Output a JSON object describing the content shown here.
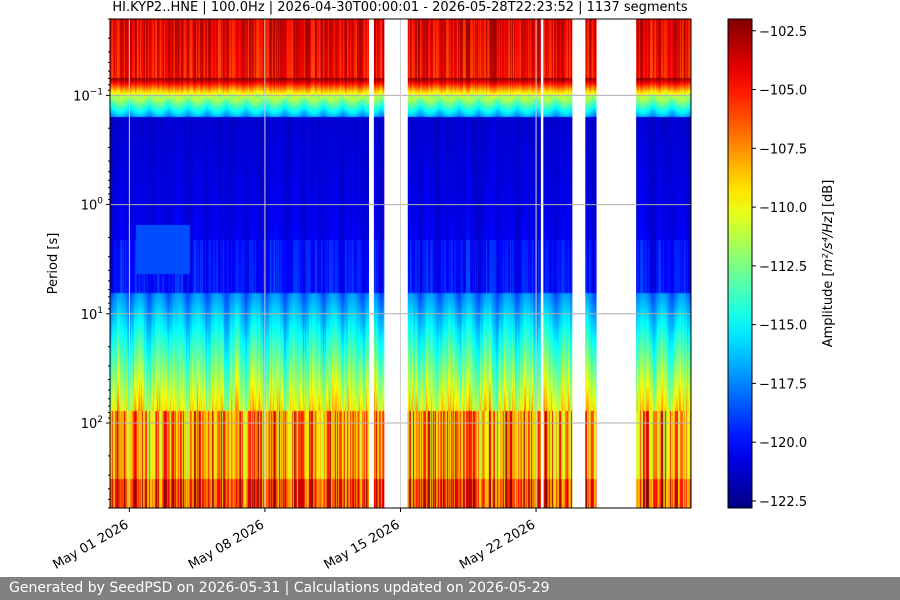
{
  "footer": {
    "text": "Generated by SeedPSD on 2026-05-31 | Calculations updated on 2026-05-29"
  },
  "chart_data": {
    "type": "heatmap",
    "title": "HI.KYP2..HNE | 100.0Hz | 2026-04-30T00:00:01 - 2026-05-28T22:23:52 | 1137 segments",
    "xlabel": "",
    "ylabel": "Period [s]",
    "y_scale": "log",
    "y_inverted": true,
    "ylim": [
      0.02,
      600
    ],
    "y_ticks": [
      {
        "value": 0.1,
        "label": "10",
        "exp": "−1"
      },
      {
        "value": 1,
        "label": "10",
        "exp": "0"
      },
      {
        "value": 10,
        "label": "10",
        "exp": "1"
      },
      {
        "value": 100,
        "label": "10",
        "exp": "2"
      }
    ],
    "xlim": [
      "2026-04-30",
      "2026-05-30"
    ],
    "x_ticks": [
      "May 01 2026",
      "May 08 2026",
      "May 15 2026",
      "May 22 2026"
    ],
    "x_tick_dates": [
      "2026-05-01",
      "2026-05-08",
      "2026-05-15",
      "2026-05-22"
    ],
    "grid": true,
    "colormap": "jet",
    "colorbar": {
      "label_pre": "Amplitude [",
      "label_math": "m²/s⁴/Hz",
      "label_post": "] [dB]",
      "range": [
        -122.8,
        -102.0
      ],
      "ticks": [
        "−102.5",
        "−105.0",
        "−107.5",
        "−110.0",
        "−112.5",
        "−115.0",
        "−117.5",
        "−120.0",
        "−122.5"
      ],
      "tick_values": [
        -102.5,
        -105.0,
        -107.5,
        -110.0,
        -112.5,
        -115.0,
        -117.5,
        -120.0,
        -122.5
      ]
    },
    "data_gaps": [
      [
        "2026-05-13T09:00",
        "2026-05-13T15:00"
      ],
      [
        "2026-05-14T04:00",
        "2026-05-15T09:00"
      ],
      [
        "2026-05-22T06:00",
        "2026-05-22T09:00"
      ],
      [
        "2026-05-23T21:00",
        "2026-05-24T13:00"
      ],
      [
        "2026-05-25T03:00",
        "2026-05-27T04:00"
      ]
    ],
    "strong_gridline_dates": [
      "2026-05-01",
      "2026-05-08",
      "2026-05-15",
      "2026-05-22"
    ]
  }
}
